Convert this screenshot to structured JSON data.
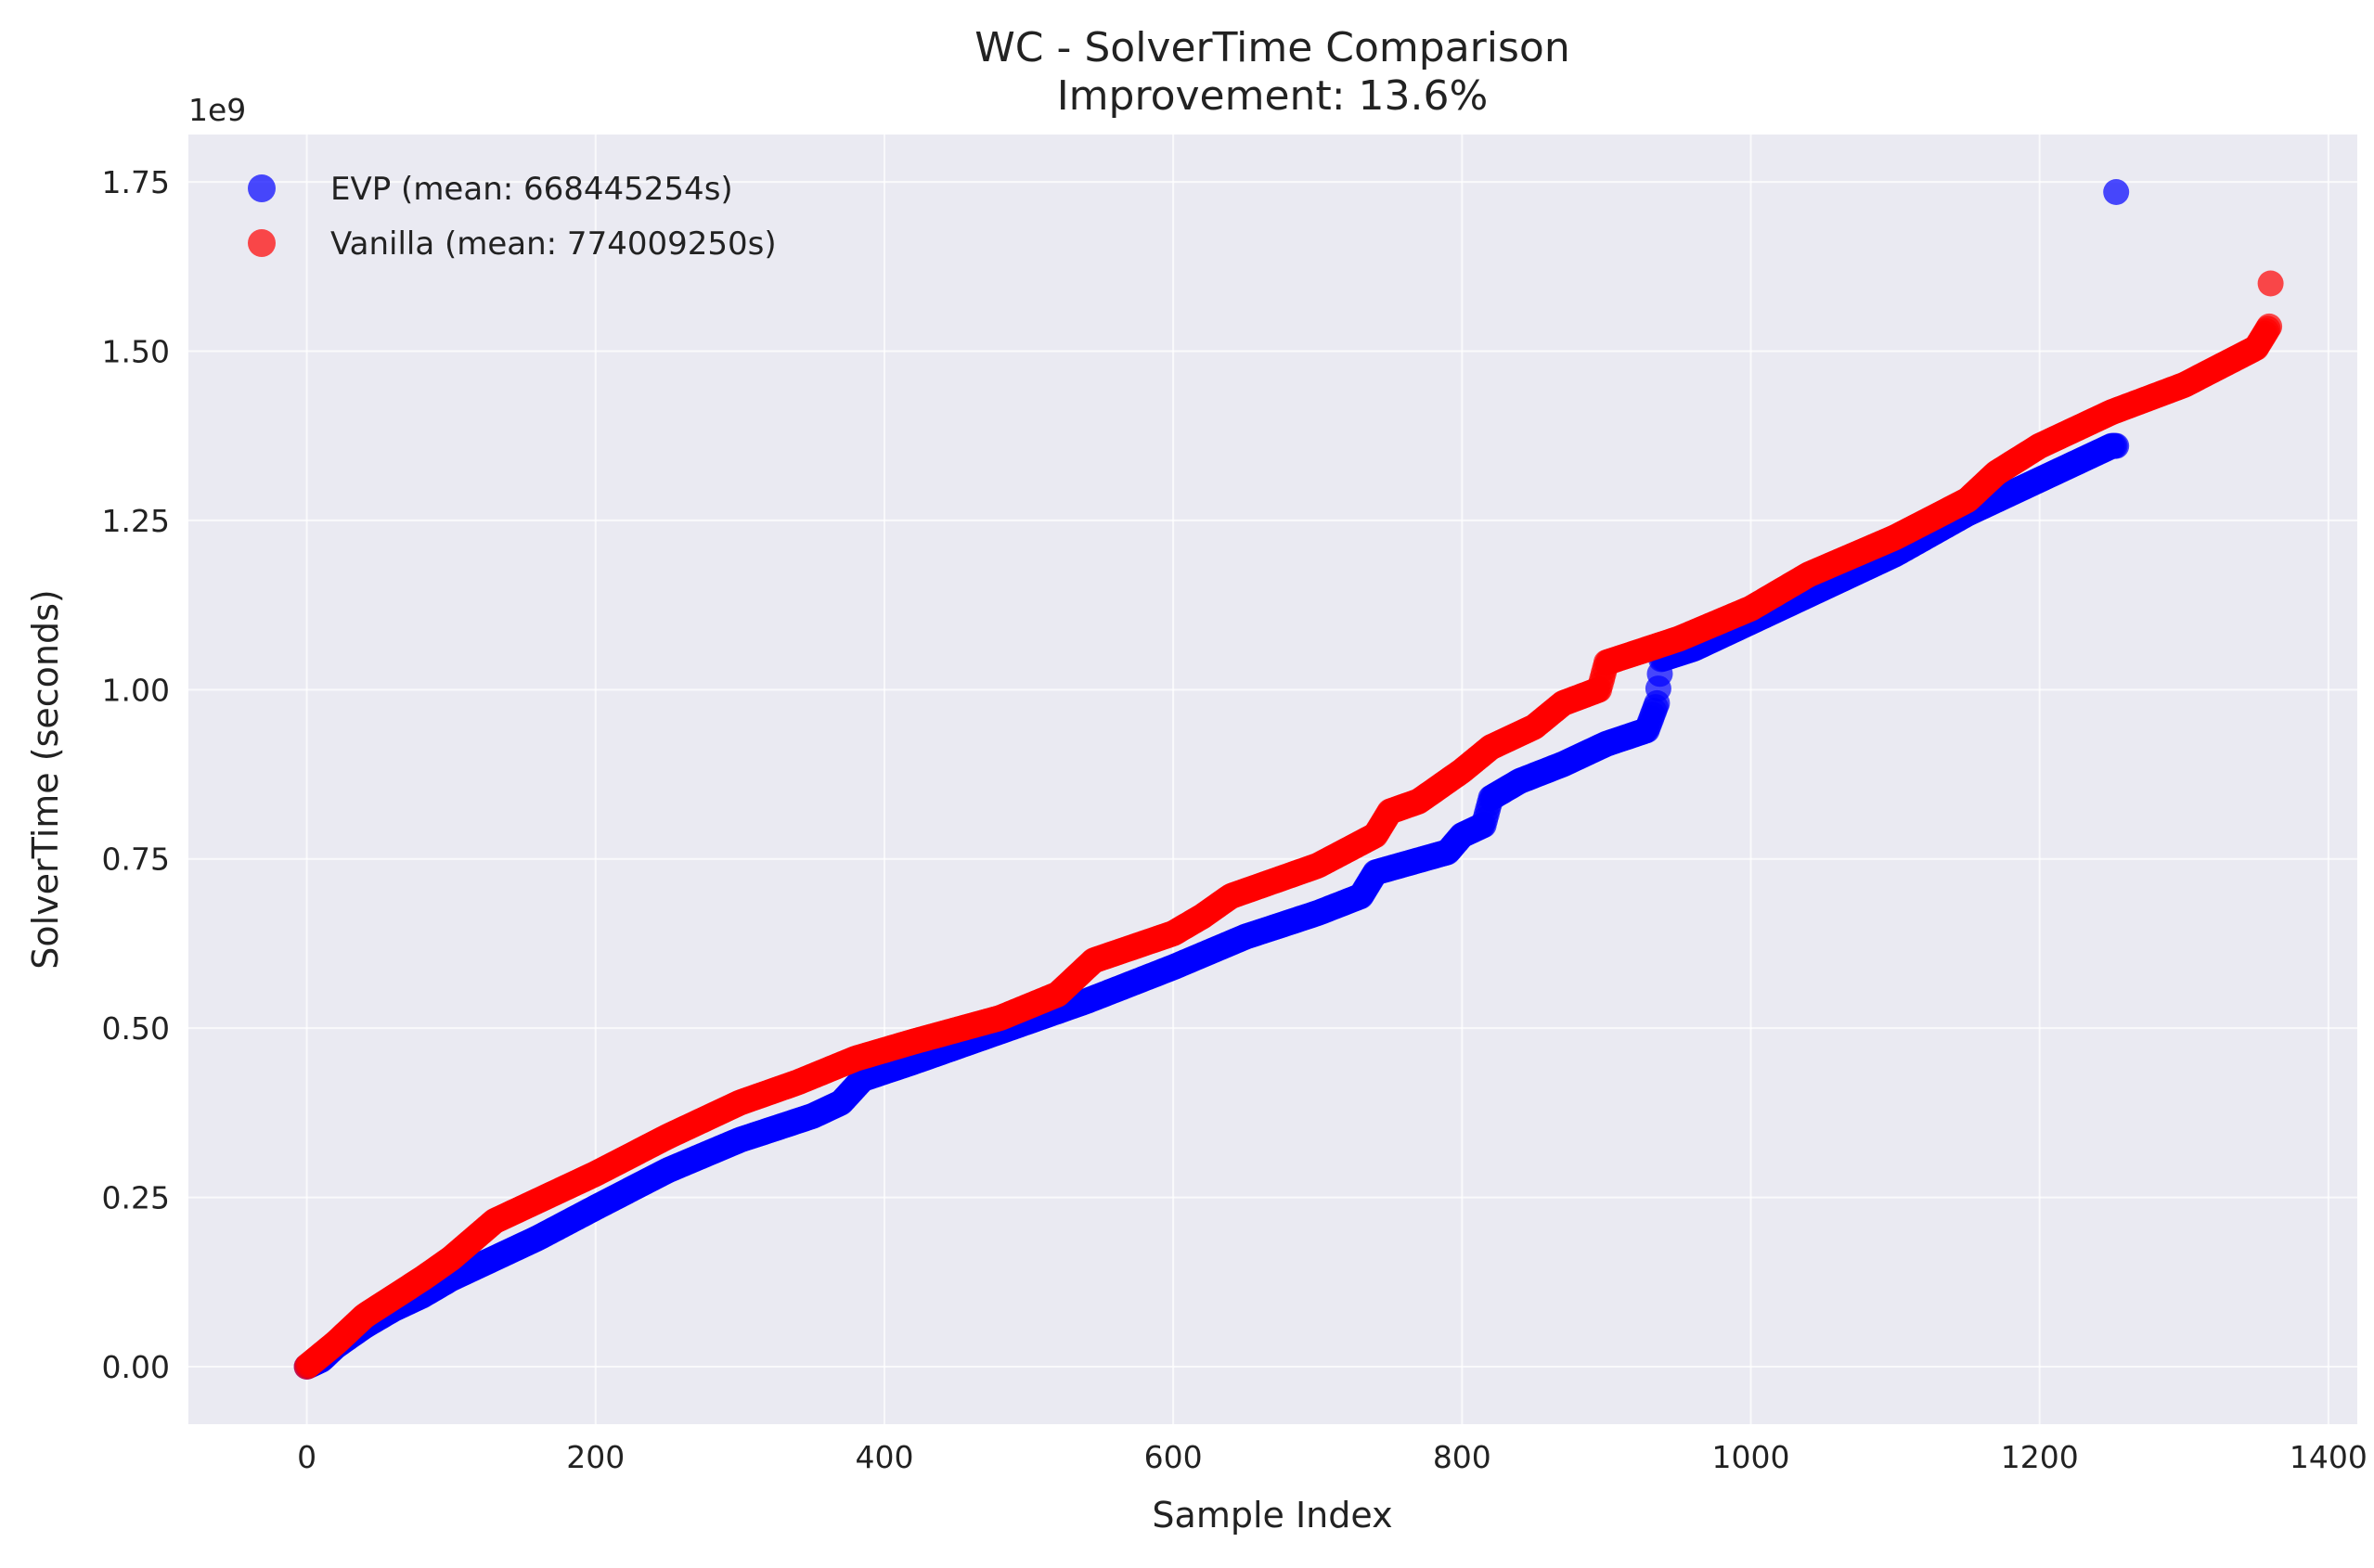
{
  "chart_data": {
    "type": "scatter",
    "title": "WC - SolverTime Comparison",
    "subtitle": "Improvement: 13.6%",
    "xlabel": "Sample Index",
    "ylabel": "SolverTime (seconds)",
    "y_offset_label": "1e9",
    "xlim": [
      -82,
      1420
    ],
    "ylim": [
      -0.085,
      1.82
    ],
    "x_ticks": [
      0,
      200,
      400,
      600,
      800,
      1000,
      1200,
      1400
    ],
    "x_tick_labels": [
      "0",
      "200",
      "400",
      "600",
      "800",
      "1000",
      "1200",
      "1400"
    ],
    "y_ticks": [
      0,
      0.25,
      0.5,
      0.75,
      1.0,
      1.25,
      1.5,
      1.75
    ],
    "y_tick_labels": [
      "0.00",
      "0.25",
      "0.50",
      "0.75",
      "1.00",
      "1.25",
      "1.50",
      "1.75"
    ],
    "grid": true,
    "legend_position": "top-left",
    "background": "#eaeaf2",
    "series": [
      {
        "name": "EVP (mean: 668445254s)",
        "color": "#0000ff",
        "count": 1254,
        "knots": [
          [
            0,
            0.0
          ],
          [
            10,
            0.01
          ],
          [
            20,
            0.03
          ],
          [
            40,
            0.06
          ],
          [
            60,
            0.085
          ],
          [
            80,
            0.105
          ],
          [
            100,
            0.13
          ],
          [
            130,
            0.16
          ],
          [
            160,
            0.19
          ],
          [
            200,
            0.235
          ],
          [
            250,
            0.29
          ],
          [
            300,
            0.335
          ],
          [
            350,
            0.37
          ],
          [
            370,
            0.39
          ],
          [
            385,
            0.425
          ],
          [
            420,
            0.45
          ],
          [
            480,
            0.495
          ],
          [
            540,
            0.54
          ],
          [
            600,
            0.59
          ],
          [
            650,
            0.635
          ],
          [
            700,
            0.67
          ],
          [
            730,
            0.695
          ],
          [
            740,
            0.73
          ],
          [
            790,
            0.76
          ],
          [
            800,
            0.785
          ],
          [
            815,
            0.8
          ],
          [
            820,
            0.84
          ],
          [
            840,
            0.865
          ],
          [
            870,
            0.89
          ],
          [
            900,
            0.92
          ],
          [
            928,
            0.94
          ],
          [
            935,
            0.98
          ],
          [
            938,
            1.045
          ],
          [
            960,
            1.06
          ],
          [
            1000,
            1.1
          ],
          [
            1050,
            1.15
          ],
          [
            1100,
            1.2
          ],
          [
            1150,
            1.26
          ],
          [
            1200,
            1.31
          ],
          [
            1230,
            1.34
          ],
          [
            1250,
            1.36
          ],
          [
            1253,
            1.36
          ]
        ],
        "outliers": [
          [
            1253,
            1.735
          ]
        ]
      },
      {
        "name": "Vanilla (mean: 774009250s)",
        "color": "#ff0000",
        "count": 1360,
        "knots": [
          [
            0,
            0.0
          ],
          [
            20,
            0.035
          ],
          [
            40,
            0.075
          ],
          [
            80,
            0.13
          ],
          [
            100,
            0.16
          ],
          [
            130,
            0.215
          ],
          [
            160,
            0.245
          ],
          [
            200,
            0.285
          ],
          [
            250,
            0.34
          ],
          [
            300,
            0.39
          ],
          [
            340,
            0.42
          ],
          [
            380,
            0.455
          ],
          [
            420,
            0.48
          ],
          [
            480,
            0.515
          ],
          [
            520,
            0.55
          ],
          [
            545,
            0.6
          ],
          [
            600,
            0.64
          ],
          [
            620,
            0.665
          ],
          [
            640,
            0.695
          ],
          [
            700,
            0.74
          ],
          [
            740,
            0.785
          ],
          [
            750,
            0.82
          ],
          [
            770,
            0.835
          ],
          [
            800,
            0.88
          ],
          [
            820,
            0.915
          ],
          [
            850,
            0.945
          ],
          [
            870,
            0.98
          ],
          [
            895,
            1.0
          ],
          [
            900,
            1.04
          ],
          [
            950,
            1.075
          ],
          [
            1000,
            1.12
          ],
          [
            1040,
            1.17
          ],
          [
            1100,
            1.225
          ],
          [
            1150,
            1.28
          ],
          [
            1170,
            1.32
          ],
          [
            1200,
            1.36
          ],
          [
            1250,
            1.41
          ],
          [
            1300,
            1.45
          ],
          [
            1350,
            1.505
          ],
          [
            1360,
            1.54
          ]
        ],
        "outliers": [
          [
            1360,
            1.6
          ]
        ]
      }
    ]
  }
}
